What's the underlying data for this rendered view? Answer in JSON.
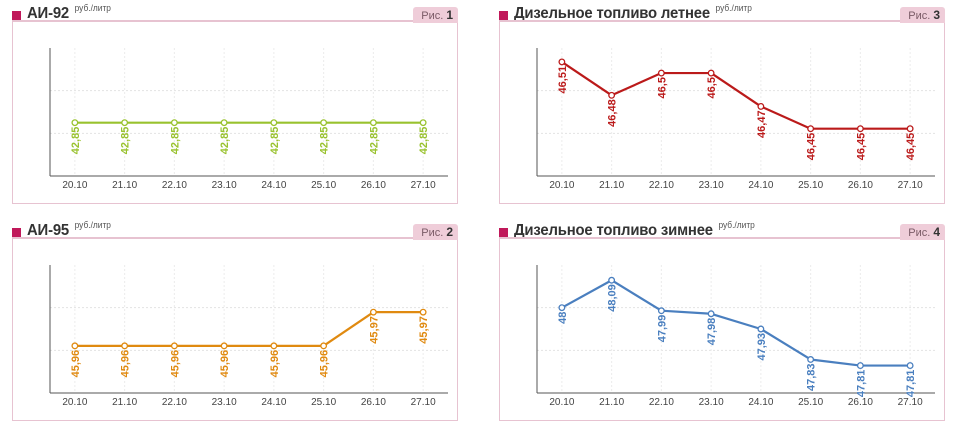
{
  "chart_data": [
    {
      "panel": "p1",
      "type": "line",
      "title": "АИ-92",
      "unit": "руб./литр",
      "fig_label": "Рис.",
      "fig_number": "1",
      "color": "#99c22e",
      "categories": [
        "20.10",
        "21.10",
        "22.10",
        "23.10",
        "24.10",
        "25.10",
        "26.10",
        "27.10"
      ],
      "values": [
        42.85,
        42.85,
        42.85,
        42.85,
        42.85,
        42.85,
        42.85,
        42.85
      ],
      "labels": [
        "42,85",
        "42,85",
        "42,85",
        "42,85",
        "42,85",
        "42,85",
        "42,85",
        "42,85"
      ],
      "ylim": [
        42.6,
        43.2
      ],
      "grid": true
    },
    {
      "panel": "p3",
      "type": "line",
      "title": "Дизельное топливо летнее",
      "unit": "руб./литр",
      "fig_label": "Рис.",
      "fig_number": "3",
      "color": "#bb1a1a",
      "categories": [
        "20.10",
        "21.10",
        "22.10",
        "23.10",
        "24.10",
        "25.10",
        "26.10",
        "27.10"
      ],
      "values": [
        46.51,
        46.48,
        46.5,
        46.5,
        46.47,
        46.45,
        46.45,
        46.45
      ],
      "labels": [
        "46,51",
        "46,48",
        "46,5",
        "46,5",
        "46,47",
        "46,45",
        "46,45",
        "46,45"
      ],
      "ylim": [
        46.4075,
        46.5225
      ],
      "grid": true
    },
    {
      "panel": "p2",
      "type": "line",
      "title": "АИ-95",
      "unit": "руб./литр",
      "fig_label": "Рис.",
      "fig_number": "2",
      "color": "#e08a10",
      "categories": [
        "20.10",
        "21.10",
        "22.10",
        "23.10",
        "24.10",
        "25.10",
        "26.10",
        "27.10"
      ],
      "values": [
        45.96,
        45.96,
        45.96,
        45.96,
        45.96,
        45.96,
        45.97,
        45.97
      ],
      "labels": [
        "45,96",
        "45,96",
        "45,96",
        "45,96",
        "45,96",
        "45,96",
        "45,97",
        "45,97"
      ],
      "ylim": [
        45.946,
        45.984
      ],
      "grid": true
    },
    {
      "panel": "p4",
      "type": "line",
      "title": "Дизельное топливо зимнее",
      "unit": "руб./литр",
      "fig_label": "Рис.",
      "fig_number": "4",
      "color": "#4a7fbf",
      "categories": [
        "20.10",
        "21.10",
        "22.10",
        "23.10",
        "24.10",
        "25.10",
        "26.10",
        "27.10"
      ],
      "values": [
        48,
        48.09,
        47.99,
        47.98,
        47.93,
        47.83,
        47.81,
        47.81
      ],
      "labels": [
        "48",
        "48,09",
        "47,99",
        "47,98",
        "47,93",
        "47,83",
        "47,81",
        "47,81"
      ],
      "ylim": [
        47.72,
        48.14
      ],
      "grid": true
    }
  ],
  "style": {
    "bullet_color": "#c0185a"
  }
}
